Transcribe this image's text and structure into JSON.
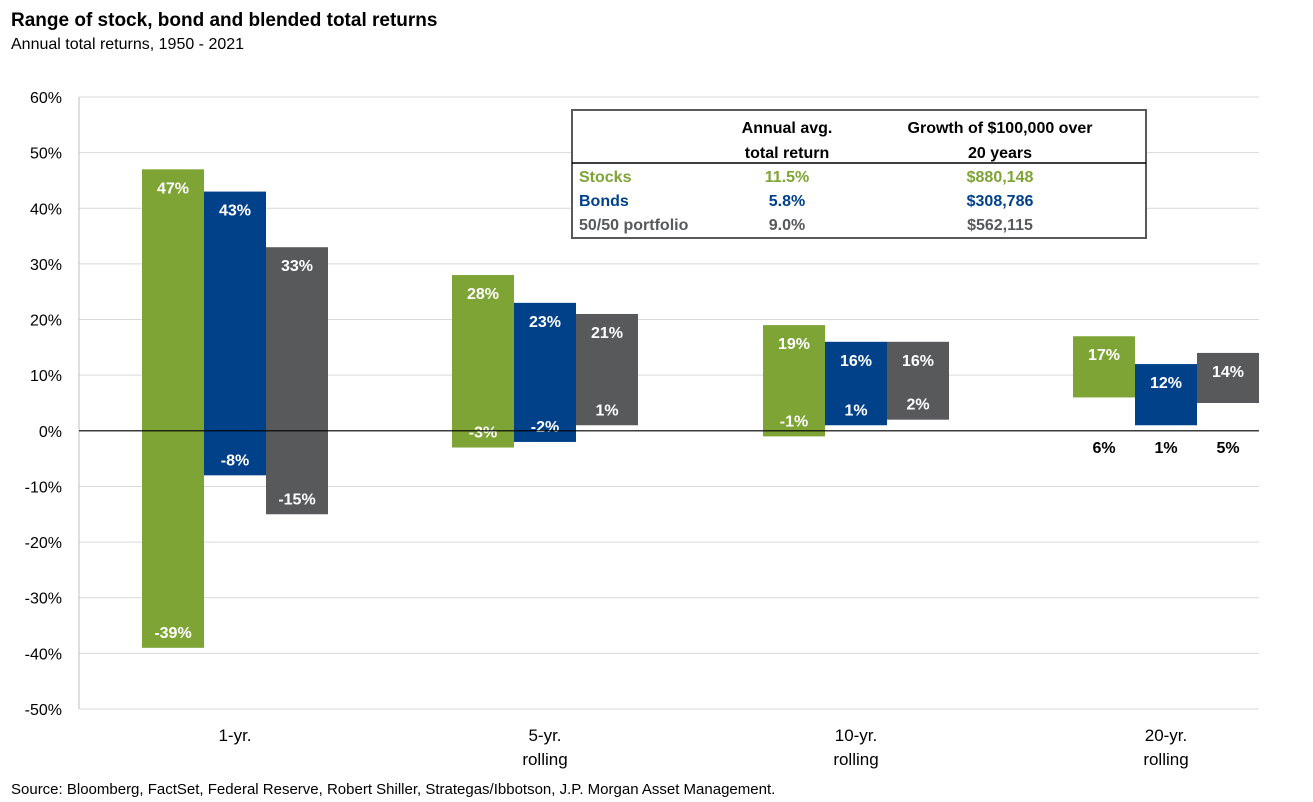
{
  "title": "Range of stock, bond and blended total returns",
  "subtitle": "Annual total returns, 1950 - 2021",
  "source": "Source: Bloomberg, FactSet, Federal Reserve, Robert Shiller, Strategas/Ibbotson, J.P. Morgan Asset Management.",
  "colors": {
    "stocks": "#7DA434",
    "bonds": "#00418A",
    "blend": "#58595B",
    "grid": "#d9d9d9"
  },
  "chart_data": {
    "type": "bar",
    "subtype": "floating-range",
    "categories": [
      [
        "1-yr."
      ],
      [
        "5-yr.",
        "rolling"
      ],
      [
        "10-yr.",
        "rolling"
      ],
      [
        "20-yr.",
        "rolling"
      ]
    ],
    "ylim": [
      -50,
      60
    ],
    "yticks": [
      60,
      50,
      40,
      30,
      20,
      10,
      0,
      -10,
      -20,
      -30,
      -40,
      -50
    ],
    "ytick_labels": [
      "60%",
      "50%",
      "40%",
      "30%",
      "20%",
      "10%",
      "0%",
      "-10%",
      "-20%",
      "-30%",
      "-40%",
      "-50%"
    ],
    "grid": true,
    "series": [
      {
        "name": "Stocks",
        "color_key": "stocks",
        "high": [
          47,
          28,
          19,
          17
        ],
        "low": [
          -39,
          -3,
          -1,
          6
        ],
        "high_labels": [
          "47%",
          "28%",
          "19%",
          "17%"
        ],
        "low_labels": [
          "-39%",
          "-3%",
          "-1%",
          "6%"
        ]
      },
      {
        "name": "Bonds",
        "color_key": "bonds",
        "high": [
          43,
          23,
          16,
          12
        ],
        "low": [
          -8,
          -2,
          1,
          1
        ],
        "high_labels": [
          "43%",
          "23%",
          "16%",
          "12%"
        ],
        "low_labels": [
          "-8%",
          "-2%",
          "1%",
          "1%"
        ]
      },
      {
        "name": "50/50 portfolio",
        "color_key": "blend",
        "high": [
          33,
          21,
          16,
          14
        ],
        "low": [
          -15,
          1,
          2,
          5
        ],
        "high_labels": [
          "33%",
          "21%",
          "16%",
          "14%"
        ],
        "low_labels": [
          "-15%",
          "1%",
          "2%",
          "5%"
        ]
      }
    ],
    "table": {
      "headers": [
        [
          "Annual avg.",
          "total return"
        ],
        [
          "Growth of $100,000 over",
          "20 years"
        ]
      ],
      "rows": [
        {
          "label": "Stocks",
          "avg": "11.5%",
          "growth": "$880,148",
          "color_key": "stocks"
        },
        {
          "label": "Bonds",
          "avg": "5.8%",
          "growth": "$308,786",
          "color_key": "bonds"
        },
        {
          "label": "50/50 portfolio",
          "avg": "9.0%",
          "growth": "$562,115",
          "color_key": "blend"
        }
      ]
    }
  }
}
